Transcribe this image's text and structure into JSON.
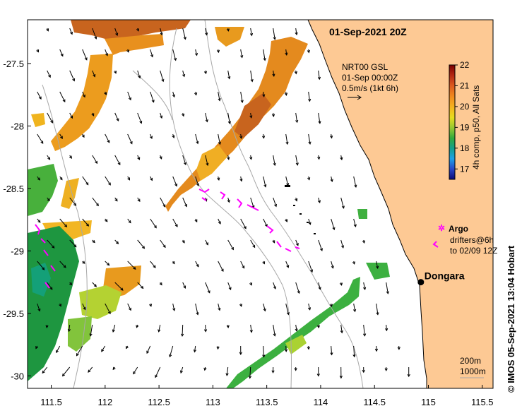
{
  "map": {
    "title": "01-Sep-2021 20Z",
    "product": {
      "line1": "NRT00 GSL",
      "line2": "01-Sep 00:00Z",
      "line3": "0.5m/s (1kt 6h)"
    },
    "colorbar": {
      "label": "4h comp, p50, All Sats",
      "ticks": [
        "22",
        "21",
        "20",
        "19",
        "18",
        "17"
      ],
      "min": 16.5,
      "max": 22
    },
    "legend": {
      "argo_label": "Argo",
      "drifters_line1": "drifters@6h",
      "drifters_line2": "to 02/09 12Z"
    },
    "place": {
      "name": "Dongara",
      "lon": 114.93,
      "lat": -29.25
    },
    "scale": {
      "line1": "200m",
      "line2": "1000m"
    },
    "credit": "©  IMOS 05-Sep-2021 13:04 Hobart",
    "axes": {
      "lon_ticks": [
        "111.5",
        "112",
        "112.5",
        "113",
        "113.5",
        "114",
        "114.5",
        "115",
        "115.5"
      ],
      "lat_ticks": [
        "-27.5",
        "-28",
        "-28.5",
        "-29",
        "-29.5",
        "-30"
      ],
      "lon_range": [
        111.28,
        115.6
      ],
      "lat_range": [
        -30.1,
        -27.15
      ]
    },
    "colors": {
      "land": "#fdc994",
      "bathy": "#a8a8a8",
      "argo": "#ff00ff",
      "sst_warm": "#c86414",
      "sst_cool": "#1e9640"
    }
  }
}
